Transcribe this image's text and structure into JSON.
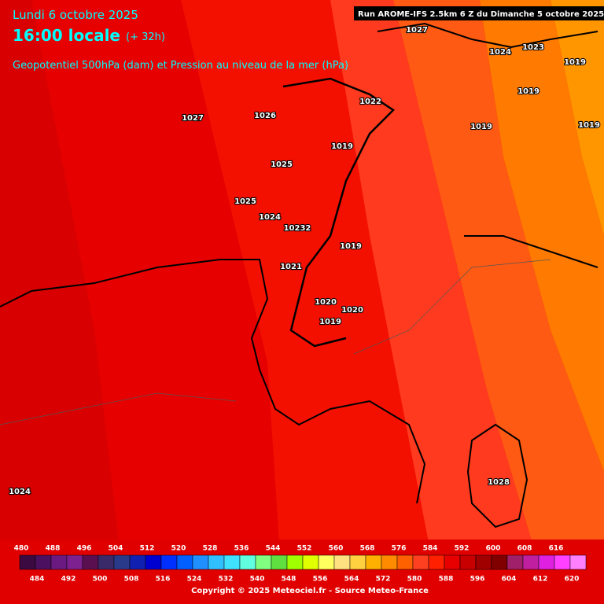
{
  "header": {
    "date": "Lundi 6 octobre 2025",
    "time": "16:00 locale",
    "lead": "(+ 32h)",
    "subtitle": "Geopotentiel 500hPa (dam) et Pression au niveau de la mer (hPa)",
    "run": "Run AROME-IFS 2.5km 6 Z du Dimanche 5 octobre 2025"
  },
  "pressure_labels": [
    "1027",
    "1024",
    "1023",
    "1019",
    "1019",
    "1022",
    "1027",
    "1026",
    "1019",
    "1019",
    "1019",
    "1025",
    "1025",
    "1024",
    "10232",
    "1019",
    "1021",
    "1020",
    "1020",
    "1019",
    "1024",
    "1028"
  ],
  "scale": {
    "values": [
      480,
      484,
      488,
      492,
      496,
      500,
      504,
      508,
      512,
      516,
      520,
      524,
      528,
      532,
      536,
      540,
      544,
      548,
      552,
      556,
      560,
      564,
      568,
      572,
      576,
      580,
      584,
      588,
      592,
      596,
      600,
      604,
      608,
      612,
      616,
      620
    ],
    "colors": [
      "#3a0a40",
      "#4b1060",
      "#6a1a80",
      "#7d2090",
      "#5a1050",
      "#3a2a6a",
      "#2a3a8a",
      "#1020b0",
      "#0000d0",
      "#0030ff",
      "#0060ff",
      "#2090ff",
      "#30c0ff",
      "#40e0ff",
      "#60ffe0",
      "#80ff80",
      "#60e040",
      "#a0ff00",
      "#e0ff00",
      "#ffff60",
      "#ffe080",
      "#ffd040",
      "#ffb000",
      "#ff8c00",
      "#ff6000",
      "#ff4020",
      "#ff2000",
      "#e80000",
      "#c80000",
      "#a00000",
      "#800000",
      "#a0206a",
      "#c020a0",
      "#e020e0",
      "#ff40ff",
      "#ff80ff"
    ]
  },
  "footer": {
    "copyright": "Copyright © 2025 Meteociel.fr - Source Meteo-France"
  }
}
